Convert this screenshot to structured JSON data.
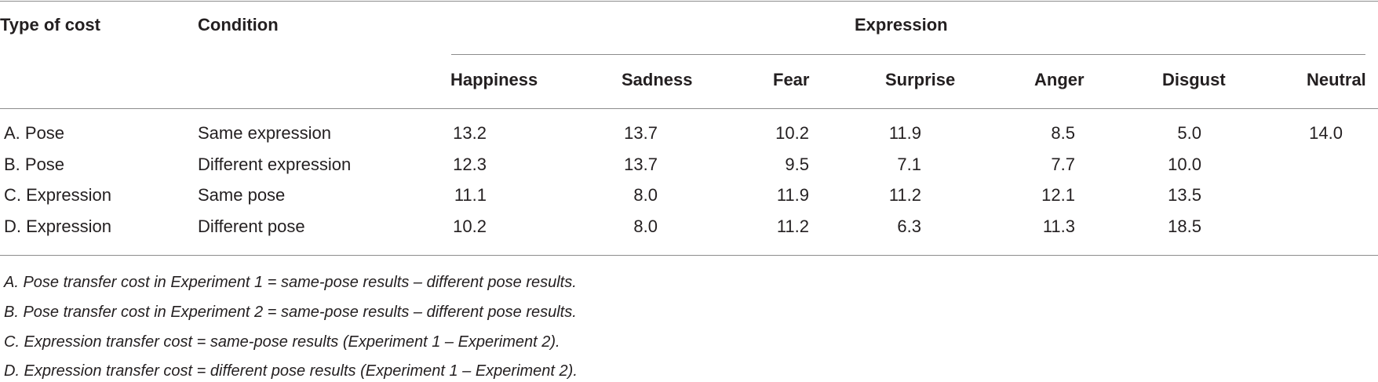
{
  "table": {
    "headers": {
      "type_of_cost": "Type of cost",
      "condition": "Condition",
      "expression": "Expression",
      "columns": [
        "Happiness",
        "Sadness",
        "Fear",
        "Surprise",
        "Anger",
        "Disgust",
        "Neutral"
      ]
    },
    "rows": [
      {
        "type": "A. Pose",
        "condition": "Same expression",
        "values": [
          "13.2",
          "13.7",
          "10.2",
          "11.9",
          "8.5",
          "5.0",
          "14.0"
        ]
      },
      {
        "type": "B. Pose",
        "condition": "Different expression",
        "values": [
          "12.3",
          "13.7",
          "9.5",
          "7.1",
          "7.7",
          "10.0",
          ""
        ]
      },
      {
        "type": "C. Expression",
        "condition": "Same pose",
        "values": [
          "11.1",
          "8.0",
          "11.9",
          "11.2",
          "12.1",
          "13.5",
          ""
        ]
      },
      {
        "type": "D. Expression",
        "condition": "Different pose",
        "values": [
          "10.2",
          "8.0",
          "11.2",
          "6.3",
          "11.3",
          "18.5",
          ""
        ]
      }
    ]
  },
  "footnotes": [
    "A. Pose transfer cost in Experiment 1 = same-pose results – different pose results.",
    "B. Pose transfer cost in Experiment 2 = same-pose results – different pose results.",
    "C. Expression transfer cost = same-pose results (Experiment 1 – Experiment 2).",
    "D. Expression transfer cost = different pose results (Experiment 1 – Experiment 2)."
  ]
}
